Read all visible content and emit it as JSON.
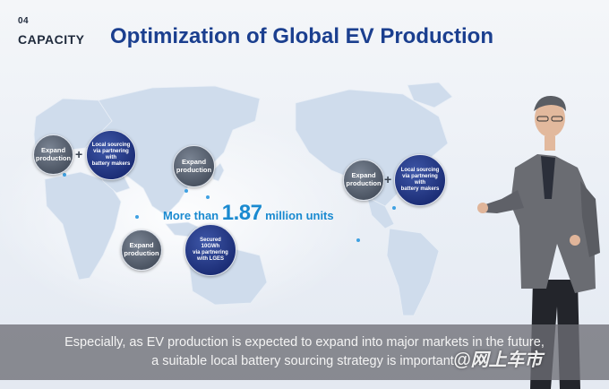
{
  "header": {
    "section_number": "04",
    "section_name": "CAPACITY",
    "title": "Optimization of Global EV Production"
  },
  "map": {
    "regions": [
      {
        "expand_label": "Expand\nproduction",
        "partner_label": "Local sourcing\nvia partnering with\nbattery makers"
      },
      {
        "expand_label": "Expand\nproduction"
      },
      {
        "expand_label": "Expand\nproduction",
        "partner_label": "Local sourcing\nvia partnering with\nbattery makers"
      },
      {
        "expand_label": "Expand\nproduction",
        "partner_label": "Secured\n10GWh\nvia partnering\nwith LGES"
      }
    ],
    "plus_symbol": "+",
    "capacity_prefix": "More than ",
    "capacity_value": "1.87",
    "capacity_suffix": " million units"
  },
  "caption": {
    "line1": "Especially, as EV production is expected to expand into major markets in the future,",
    "line2": "a suitable local battery sourcing strategy is important."
  },
  "watermark": "@网上车市",
  "colors": {
    "title_blue": "#1b3f8f",
    "accent_cyan": "#1a8ad0",
    "partner_navy": "#1d2f78",
    "expand_gray": "#4c5563"
  }
}
